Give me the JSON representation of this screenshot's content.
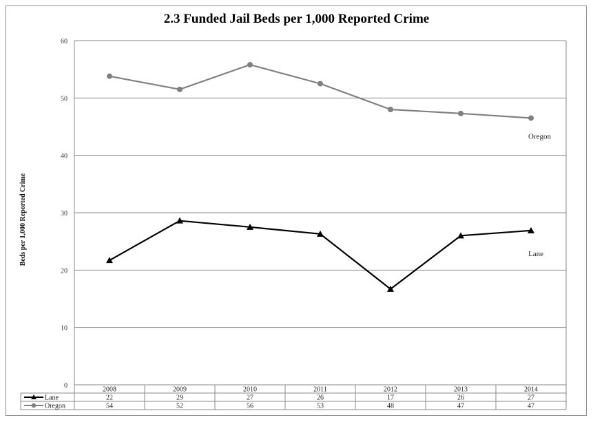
{
  "chart_data": {
    "type": "line",
    "title": "2.3 Funded Jail Beds per 1,000 Reported Crime",
    "ylabel": "Beds per 1,000 Reported Crime",
    "xlabel": "",
    "ylim": [
      0,
      60
    ],
    "yticks": [
      0,
      10,
      20,
      30,
      40,
      50,
      60
    ],
    "grid": true,
    "legend": "data-table",
    "categories": [
      "2008",
      "2009",
      "2010",
      "2011",
      "2012",
      "2013",
      "2014"
    ],
    "series": [
      {
        "name": "Lane",
        "marker": "triangle",
        "color": "#000000",
        "values": [
          21.7,
          28.6,
          27.5,
          26.3,
          16.7,
          26.0,
          26.9
        ],
        "table_values": [
          "22",
          "29",
          "27",
          "26",
          "17",
          "26",
          "27"
        ]
      },
      {
        "name": "Oregon",
        "marker": "circle",
        "color": "#808080",
        "values": [
          53.8,
          51.5,
          55.8,
          52.5,
          48.0,
          47.3,
          46.5
        ],
        "table_values": [
          "54",
          "52",
          "56",
          "53",
          "48",
          "47",
          "47"
        ]
      }
    ]
  }
}
